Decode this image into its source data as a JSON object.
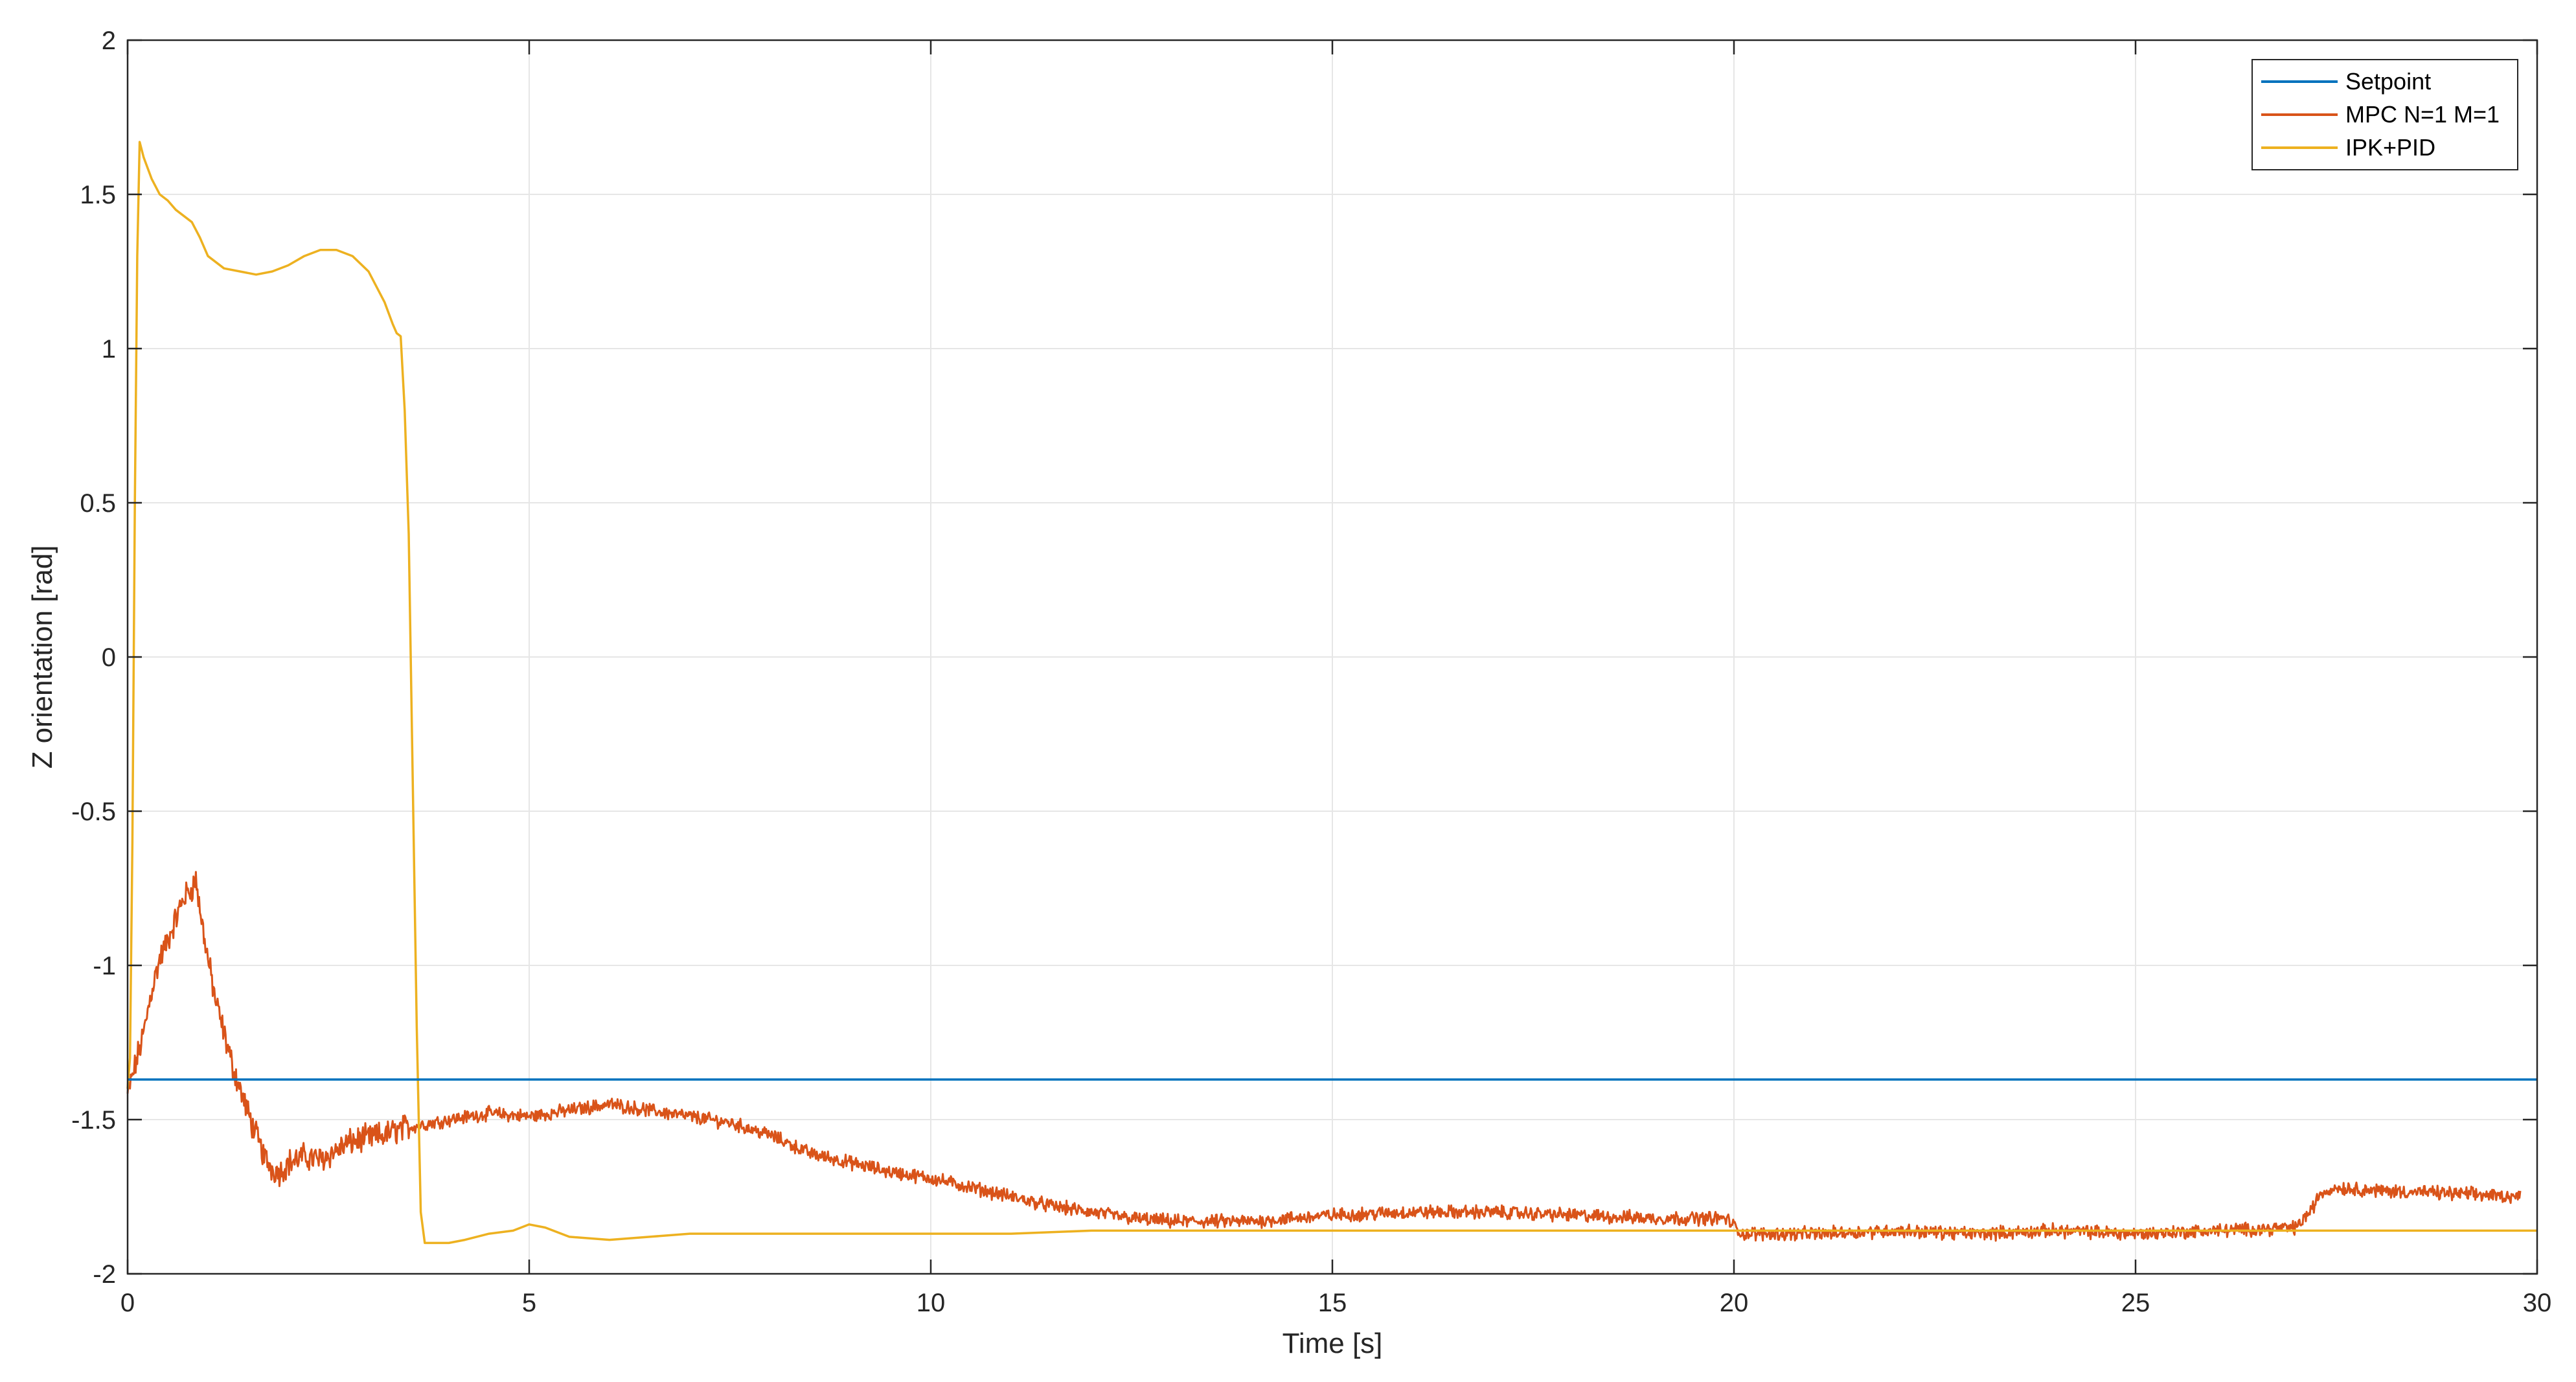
{
  "chart_data": {
    "type": "line",
    "title": "",
    "xlabel": "Time [s]",
    "ylabel": "Z orientation [rad]",
    "xlim": [
      0,
      30
    ],
    "ylim": [
      -2,
      2
    ],
    "xticks": [
      0,
      5,
      10,
      15,
      20,
      25,
      30
    ],
    "xtick_labels": [
      "0",
      "5",
      "10",
      "15",
      "20",
      "25",
      "30"
    ],
    "yticks": [
      -2,
      -1.5,
      -1,
      -0.5,
      0,
      0.5,
      1,
      1.5,
      2
    ],
    "ytick_labels": [
      "-2",
      "-1.5",
      "-1",
      "-0.5",
      "0",
      "0.5",
      "1",
      "1.5",
      "2"
    ],
    "grid": true,
    "legend_position": "top-right",
    "series": [
      {
        "name": "Setpoint",
        "color": "#0072BD",
        "x": [
          0,
          30
        ],
        "y": [
          -1.37,
          -1.37
        ]
      },
      {
        "name": "MPC N=1 M=1",
        "color": "#D95319",
        "noisy": true,
        "x": [
          0,
          0.1,
          0.2,
          0.3,
          0.4,
          0.5,
          0.6,
          0.7,
          0.8,
          0.85,
          0.9,
          0.95,
          1.0,
          1.1,
          1.2,
          1.3,
          1.4,
          1.5,
          1.6,
          1.7,
          1.8,
          1.9,
          2.0,
          2.2,
          2.4,
          2.6,
          2.8,
          3.0,
          3.2,
          3.4,
          3.6,
          3.8,
          4.0,
          4.5,
          5.0,
          5.5,
          6.0,
          6.5,
          7.0,
          7.5,
          8.0,
          8.5,
          9.0,
          9.5,
          10.0,
          10.5,
          11.0,
          11.5,
          12.0,
          12.5,
          13.0,
          14.0,
          15.0,
          16.0,
          17.0,
          18.0,
          19.0,
          19.9,
          20.1,
          21.0,
          22.0,
          23.0,
          24.0,
          25.0,
          26.0,
          27.0,
          27.2,
          27.3,
          27.5,
          28.0,
          29.0,
          29.8
        ],
        "y": [
          -1.42,
          -1.32,
          -1.22,
          -1.08,
          -0.98,
          -0.92,
          -0.85,
          -0.78,
          -0.75,
          -0.72,
          -0.82,
          -0.9,
          -0.98,
          -1.12,
          -1.22,
          -1.32,
          -1.4,
          -1.48,
          -1.55,
          -1.62,
          -1.66,
          -1.67,
          -1.64,
          -1.62,
          -1.63,
          -1.6,
          -1.57,
          -1.56,
          -1.55,
          -1.53,
          -1.52,
          -1.51,
          -1.5,
          -1.48,
          -1.49,
          -1.47,
          -1.45,
          -1.47,
          -1.49,
          -1.51,
          -1.55,
          -1.61,
          -1.64,
          -1.67,
          -1.69,
          -1.72,
          -1.75,
          -1.78,
          -1.8,
          -1.82,
          -1.83,
          -1.83,
          -1.81,
          -1.8,
          -1.8,
          -1.81,
          -1.82,
          -1.82,
          -1.87,
          -1.87,
          -1.86,
          -1.87,
          -1.86,
          -1.87,
          -1.86,
          -1.85,
          -1.79,
          -1.74,
          -1.72,
          -1.73,
          -1.74,
          -1.75
        ]
      },
      {
        "name": "IPK+PID",
        "color": "#EDB120",
        "x": [
          0,
          0.03,
          0.06,
          0.09,
          0.12,
          0.15,
          0.2,
          0.3,
          0.4,
          0.5,
          0.6,
          0.7,
          0.8,
          0.9,
          1.0,
          1.2,
          1.4,
          1.6,
          1.8,
          2.0,
          2.2,
          2.4,
          2.6,
          2.8,
          3.0,
          3.2,
          3.3,
          3.35,
          3.4,
          3.45,
          3.5,
          3.55,
          3.6,
          3.65,
          3.7,
          3.75,
          3.8,
          4.0,
          4.2,
          4.5,
          4.8,
          5.0,
          5.2,
          5.5,
          6.0,
          6.5,
          7.0,
          8.0,
          9.0,
          10.0,
          11.0,
          12.0,
          13.0,
          14.0,
          15.0,
          16.0,
          17.0,
          18.0,
          19.0,
          20.0,
          21.0,
          22.0,
          23.0,
          24.0,
          25.0,
          26.0,
          27.0,
          28.0,
          29.0,
          30.0
        ],
        "y": [
          -1.4,
          -1.3,
          -0.6,
          0.5,
          1.3,
          1.67,
          1.62,
          1.55,
          1.5,
          1.48,
          1.45,
          1.43,
          1.41,
          1.36,
          1.3,
          1.26,
          1.25,
          1.24,
          1.25,
          1.27,
          1.3,
          1.32,
          1.32,
          1.3,
          1.25,
          1.15,
          1.08,
          1.05,
          1.04,
          0.8,
          0.4,
          -0.4,
          -1.2,
          -1.8,
          -1.9,
          -1.9,
          -1.9,
          -1.9,
          -1.89,
          -1.87,
          -1.86,
          -1.84,
          -1.85,
          -1.88,
          -1.89,
          -1.88,
          -1.87,
          -1.87,
          -1.87,
          -1.87,
          -1.87,
          -1.86,
          -1.86,
          -1.86,
          -1.86,
          -1.86,
          -1.86,
          -1.86,
          -1.86,
          -1.86,
          -1.86,
          -1.86,
          -1.86,
          -1.86,
          -1.86,
          -1.86,
          -1.86,
          -1.86,
          -1.86,
          -1.86
        ]
      }
    ]
  }
}
